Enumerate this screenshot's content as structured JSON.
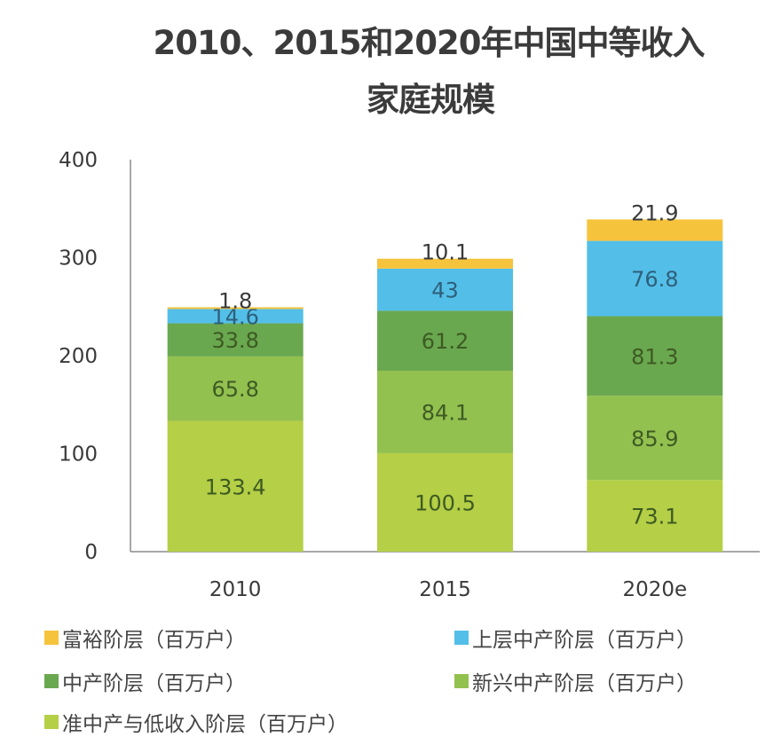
{
  "title": {
    "line1": "2010、2015和2020年中国中等收入",
    "line2": "家庭规模"
  },
  "chart_data": {
    "type": "bar",
    "stacked": true,
    "title": "2010、2015和2020年中国中等收入家庭规模",
    "xlabel": "",
    "ylabel": "",
    "ylim": [
      0,
      400
    ],
    "yticks": [
      0,
      100,
      200,
      300,
      400
    ],
    "grid": false,
    "legend_position": "bottom",
    "categories": [
      "2010",
      "2015",
      "2020e"
    ],
    "series": [
      {
        "name": "准中产与低收入阶层（百万户）",
        "color": "#b5cf46",
        "values": [
          133.4,
          100.5,
          73.1
        ]
      },
      {
        "name": "新兴中产阶层（百万户）",
        "color": "#93c150",
        "values": [
          65.8,
          84.1,
          85.9
        ]
      },
      {
        "name": "中产阶层（百万户）",
        "color": "#6aa84f",
        "values": [
          33.8,
          61.2,
          81.3
        ]
      },
      {
        "name": "上层中产阶层（百万户）",
        "color": "#53bfe9",
        "values": [
          14.6,
          43,
          76.8
        ]
      },
      {
        "name": "富裕阶层（百万户）",
        "color": "#f6c33c",
        "values": [
          1.8,
          10.1,
          21.9
        ]
      }
    ],
    "data_labels": [
      [
        "133.4",
        "100.5",
        "73.1"
      ],
      [
        "65.8",
        "84.1",
        "85.9"
      ],
      [
        "33.8",
        "61.2",
        "81.3"
      ],
      [
        "14.6",
        "43",
        "76.8"
      ],
      [
        "1.8",
        "10.1",
        "21.9"
      ]
    ]
  },
  "legend": [
    {
      "label": "富裕阶层（百万户）",
      "color": "#f6c33c"
    },
    {
      "label": "上层中产阶层（百万户）",
      "color": "#53bfe9"
    },
    {
      "label": "中产阶层（百万户）",
      "color": "#6aa84f"
    },
    {
      "label": "新兴中产阶层（百万户）",
      "color": "#93c150"
    },
    {
      "label": "准中产与低收入阶层（百万户）",
      "color": "#b5cf46"
    }
  ]
}
